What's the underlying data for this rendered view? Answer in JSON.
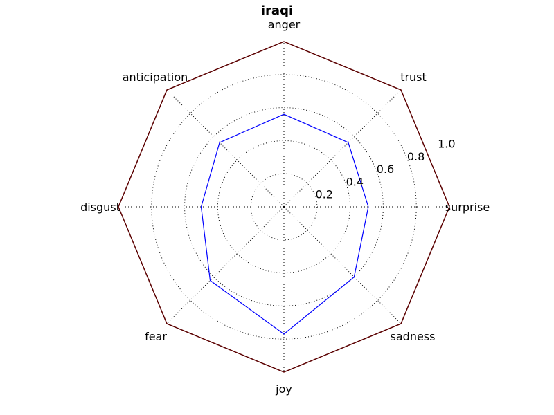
{
  "chart_data": {
    "type": "radar",
    "title": "iraqi",
    "categories": [
      "surprise",
      "trust",
      "anger",
      "anticipation",
      "disgust",
      "fear",
      "joy",
      "sadness"
    ],
    "series": [
      {
        "values": [
          0.51,
          0.55,
          0.56,
          0.55,
          0.5,
          0.63,
          0.77,
          0.6
        ],
        "color": "#0000ff"
      }
    ],
    "rlim": [
      0,
      1.0
    ],
    "radial_ticks": [
      "0.2",
      "0.4",
      "0.6",
      "0.8",
      "1.0"
    ],
    "radial_tick_values": [
      0.2,
      0.4,
      0.6,
      0.8,
      1.0
    ],
    "grid": true,
    "frame_color": "#5b0000"
  }
}
